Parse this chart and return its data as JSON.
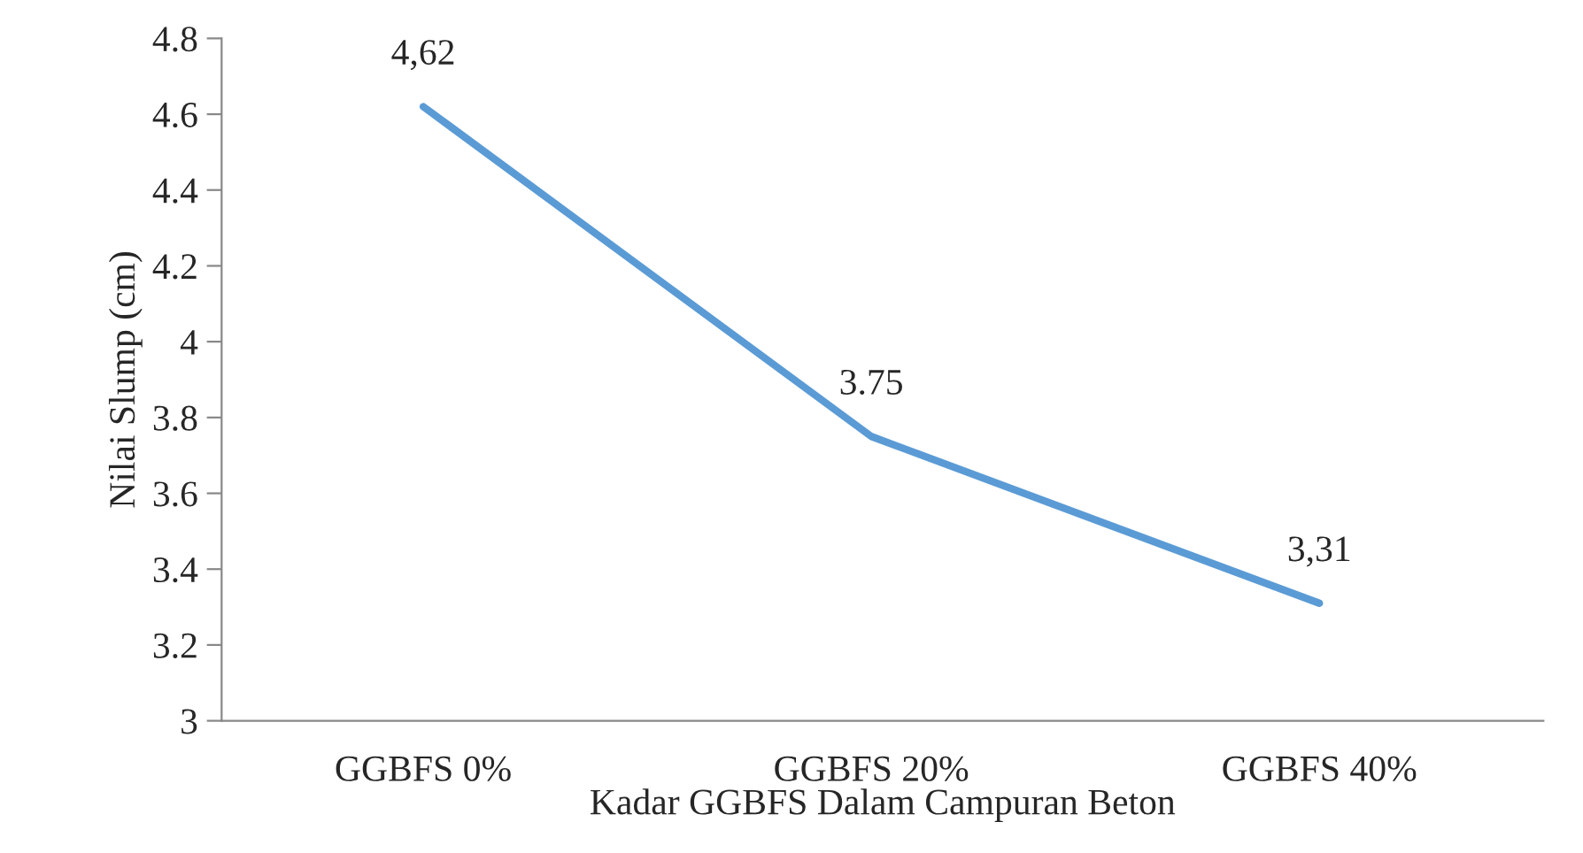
{
  "chart_data": {
    "type": "line",
    "xlabel": "Kadar GGBFS Dalam Campuran Beton",
    "ylabel": "Nilai Slump (cm)",
    "categories": [
      "GGBFS 0%",
      "GGBFS 20%",
      "GGBFS 40%"
    ],
    "series": [
      {
        "color": "#5b9bd5",
        "values": [
          4.62,
          3.75,
          3.31
        ],
        "value_labels": [
          "4,62",
          "3.75",
          "3,31"
        ]
      }
    ],
    "ylim": [
      3,
      4.8
    ],
    "yticks": [
      3,
      3.2,
      3.4,
      3.6,
      3.8,
      4,
      4.2,
      4.4,
      4.6,
      4.8
    ],
    "grid": false,
    "legend": false,
    "marker": "none",
    "line_style": "solid"
  }
}
